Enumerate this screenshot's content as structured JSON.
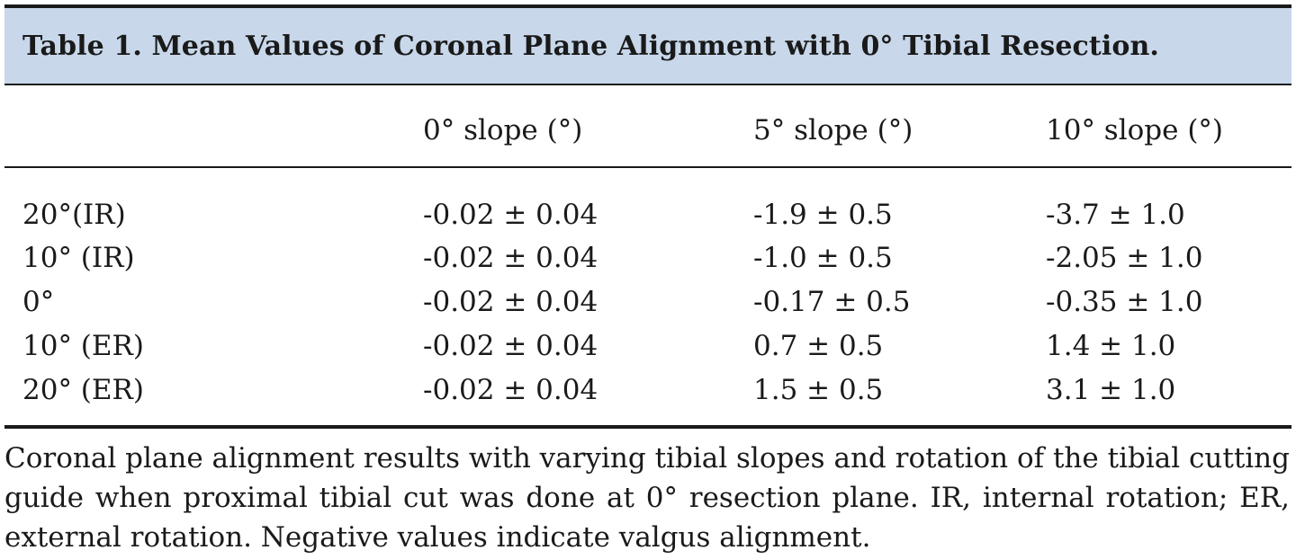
{
  "table": {
    "title": "Table 1. Mean Values of Coronal Plane Alignment with 0° Tibial Resection.",
    "columns": [
      "",
      "0° slope (°)",
      "5° slope (°)",
      "10° slope (°)"
    ],
    "rows": [
      [
        "20°(IR)",
        "-0.02 ± 0.04",
        "-1.9 ± 0.5",
        "-3.7 ± 1.0"
      ],
      [
        "10° (IR)",
        "-0.02 ± 0.04",
        "-1.0 ± 0.5",
        "-2.05 ± 1.0"
      ],
      [
        "0°",
        "-0.02 ± 0.04",
        "-0.17 ± 0.5",
        "-0.35 ± 1.0"
      ],
      [
        "10° (ER)",
        "-0.02 ± 0.04",
        "0.7 ± 0.5",
        "1.4 ± 1.0"
      ],
      [
        "20° (ER)",
        "-0.02 ± 0.04",
        "1.5 ± 0.5",
        "3.1 ± 1.0"
      ]
    ],
    "footnote": "Coronal plane alignment results with varying tibial slopes and rotation of the tibial cutting guide when proximal tibial cut was done at 0° resection plane. IR, internal rotation; ER, external rotation. Negative values indicate valgus alignment."
  },
  "colors": {
    "title_band": "#c8d7ea",
    "rule": "#1a1a1a",
    "text": "#1a1a1a"
  }
}
